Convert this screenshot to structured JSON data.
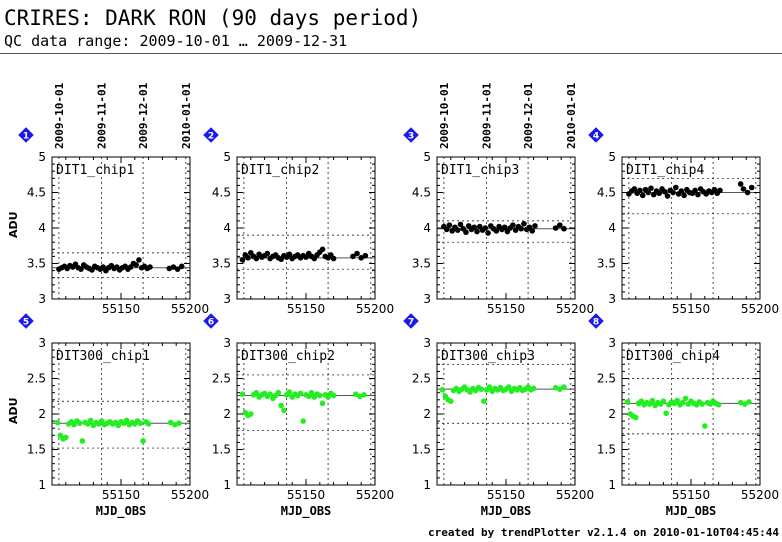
{
  "header": {
    "title": "CRIRES: DARK RON (90 days period)",
    "subtitle": "QC data range: 2009-10-01 … 2009-12-31"
  },
  "footer": "created by trendPlotter v2.1.4 on 2010-01-10T04:45:44",
  "axis_labels": {
    "y": "ADU",
    "x": "MJD_OBS"
  },
  "date_ticks": [
    "2009-10-01",
    "2009-11-01",
    "2009-12-01",
    "2010-01-01"
  ],
  "chart_data": [
    {
      "index": "1",
      "type": "scatter",
      "title": "DIT1_chip1",
      "color": "#000000",
      "xlim": [
        55100,
        55200
      ],
      "ylim": [
        3,
        5
      ],
      "yticks": [
        "3",
        "3.5",
        "4",
        "4.5",
        "5"
      ],
      "xticks": [
        "55150",
        "55200"
      ],
      "median": 3.44,
      "limits": [
        3.3,
        3.65
      ],
      "points": [
        [
          55105,
          3.42
        ],
        [
          55107,
          3.44
        ],
        [
          55109,
          3.46
        ],
        [
          55111,
          3.43
        ],
        [
          55113,
          3.47
        ],
        [
          55115,
          3.45
        ],
        [
          55117,
          3.49
        ],
        [
          55119,
          3.44
        ],
        [
          55121,
          3.42
        ],
        [
          55123,
          3.48
        ],
        [
          55125,
          3.45
        ],
        [
          55127,
          3.43
        ],
        [
          55129,
          3.41
        ],
        [
          55131,
          3.46
        ],
        [
          55133,
          3.44
        ],
        [
          55135,
          3.42
        ],
        [
          55137,
          3.45
        ],
        [
          55139,
          3.4
        ],
        [
          55141,
          3.44
        ],
        [
          55143,
          3.47
        ],
        [
          55145,
          3.43
        ],
        [
          55147,
          3.45
        ],
        [
          55149,
          3.41
        ],
        [
          55151,
          3.44
        ],
        [
          55153,
          3.46
        ],
        [
          55155,
          3.42
        ],
        [
          55157,
          3.45
        ],
        [
          55159,
          3.5
        ],
        [
          55161,
          3.48
        ],
        [
          55163,
          3.55
        ],
        [
          55165,
          3.44
        ],
        [
          55167,
          3.46
        ],
        [
          55169,
          3.43
        ],
        [
          55171,
          3.45
        ],
        [
          55185,
          3.43
        ],
        [
          55188,
          3.45
        ],
        [
          55191,
          3.42
        ],
        [
          55194,
          3.46
        ]
      ]
    },
    {
      "index": "2",
      "type": "scatter",
      "title": "DIT1_chip2",
      "color": "#000000",
      "xlim": [
        55100,
        55200
      ],
      "ylim": [
        3,
        5
      ],
      "yticks": [
        "3",
        "3.5",
        "4",
        "4.5",
        "5"
      ],
      "xticks": [
        "55150",
        "55200"
      ],
      "median": 3.58,
      "limits": [
        3.42,
        3.9
      ],
      "points": [
        [
          55104,
          3.55
        ],
        [
          55106,
          3.62
        ],
        [
          55108,
          3.58
        ],
        [
          55110,
          3.65
        ],
        [
          55112,
          3.6
        ],
        [
          55114,
          3.57
        ],
        [
          55116,
          3.63
        ],
        [
          55118,
          3.59
        ],
        [
          55120,
          3.61
        ],
        [
          55122,
          3.64
        ],
        [
          55124,
          3.57
        ],
        [
          55126,
          3.6
        ],
        [
          55128,
          3.62
        ],
        [
          55130,
          3.58
        ],
        [
          55132,
          3.56
        ],
        [
          55134,
          3.61
        ],
        [
          55136,
          3.59
        ],
        [
          55138,
          3.63
        ],
        [
          55140,
          3.57
        ],
        [
          55142,
          3.6
        ],
        [
          55144,
          3.62
        ],
        [
          55146,
          3.58
        ],
        [
          55148,
          3.61
        ],
        [
          55150,
          3.59
        ],
        [
          55152,
          3.64
        ],
        [
          55154,
          3.6
        ],
        [
          55156,
          3.57
        ],
        [
          55158,
          3.62
        ],
        [
          55160,
          3.66
        ],
        [
          55162,
          3.7
        ],
        [
          55164,
          3.6
        ],
        [
          55166,
          3.58
        ],
        [
          55168,
          3.62
        ],
        [
          55170,
          3.57
        ],
        [
          55184,
          3.6
        ],
        [
          55187,
          3.64
        ],
        [
          55190,
          3.58
        ],
        [
          55193,
          3.61
        ]
      ]
    },
    {
      "index": "3",
      "type": "scatter",
      "title": "DIT1_chip3",
      "color": "#000000",
      "xlim": [
        55100,
        55200
      ],
      "ylim": [
        3,
        5
      ],
      "yticks": [
        "3",
        "3.5",
        "4",
        "4.5",
        "5"
      ],
      "xticks": [
        "55150",
        "55200"
      ],
      "median": 3.99,
      "limits": [
        3.8,
        4.1
      ],
      "points": [
        [
          55105,
          4.02
        ],
        [
          55107,
          3.98
        ],
        [
          55109,
          4.04
        ],
        [
          55111,
          3.96
        ],
        [
          55113,
          4.01
        ],
        [
          55115,
          3.97
        ],
        [
          55117,
          4.05
        ],
        [
          55119,
          3.99
        ],
        [
          55121,
          3.94
        ],
        [
          55123,
          4.03
        ],
        [
          55125,
          3.98
        ],
        [
          55127,
          4.01
        ],
        [
          55129,
          3.95
        ],
        [
          55131,
          4.02
        ],
        [
          55133,
          3.97
        ],
        [
          55135,
          4.0
        ],
        [
          55137,
          3.93
        ],
        [
          55139,
          4.03
        ],
        [
          55141,
          3.99
        ],
        [
          55143,
          3.96
        ],
        [
          55145,
          4.02
        ],
        [
          55147,
          3.98
        ],
        [
          55149,
          4.01
        ],
        [
          55151,
          3.95
        ],
        [
          55153,
          4.0
        ],
        [
          55155,
          4.04
        ],
        [
          55157,
          3.97
        ],
        [
          55159,
          4.02
        ],
        [
          55161,
          3.99
        ],
        [
          55163,
          4.06
        ],
        [
          55165,
          3.98
        ],
        [
          55167,
          4.01
        ],
        [
          55169,
          3.96
        ],
        [
          55171,
          4.03
        ],
        [
          55186,
          4.0
        ],
        [
          55189,
          4.04
        ],
        [
          55192,
          3.99
        ]
      ]
    },
    {
      "index": "4",
      "type": "scatter",
      "title": "DIT1_chip4",
      "color": "#000000",
      "xlim": [
        55100,
        55200
      ],
      "ylim": [
        3,
        5
      ],
      "yticks": [
        "3",
        "3.5",
        "4",
        "4.5",
        "5"
      ],
      "xticks": [
        "55150",
        "55200"
      ],
      "median": 4.5,
      "limits": [
        4.2,
        4.7
      ],
      "points": [
        [
          55105,
          4.48
        ],
        [
          55107,
          4.52
        ],
        [
          55109,
          4.55
        ],
        [
          55111,
          4.49
        ],
        [
          55113,
          4.53
        ],
        [
          55115,
          4.46
        ],
        [
          55117,
          4.54
        ],
        [
          55119,
          4.5
        ],
        [
          55121,
          4.56
        ],
        [
          55123,
          4.47
        ],
        [
          55125,
          4.52
        ],
        [
          55127,
          4.49
        ],
        [
          55129,
          4.55
        ],
        [
          55131,
          4.51
        ],
        [
          55133,
          4.45
        ],
        [
          55135,
          4.53
        ],
        [
          55137,
          4.5
        ],
        [
          55139,
          4.57
        ],
        [
          55141,
          4.48
        ],
        [
          55143,
          4.52
        ],
        [
          55145,
          4.46
        ],
        [
          55147,
          4.54
        ],
        [
          55149,
          4.5
        ],
        [
          55151,
          4.49
        ],
        [
          55153,
          4.53
        ],
        [
          55155,
          4.47
        ],
        [
          55157,
          4.55
        ],
        [
          55159,
          4.51
        ],
        [
          55161,
          4.48
        ],
        [
          55163,
          4.52
        ],
        [
          55165,
          4.5
        ],
        [
          55167,
          4.54
        ],
        [
          55169,
          4.49
        ],
        [
          55171,
          4.53
        ],
        [
          55186,
          4.62
        ],
        [
          55188,
          4.55
        ],
        [
          55191,
          4.5
        ],
        [
          55194,
          4.57
        ]
      ]
    },
    {
      "index": "5",
      "type": "scatter",
      "title": "DIT300_chip1",
      "color": "#22ee22",
      "xlim": [
        55100,
        55200
      ],
      "ylim": [
        1,
        3
      ],
      "yticks": [
        "1",
        "1.5",
        "2",
        "2.5",
        "3"
      ],
      "xticks": [
        "55150",
        "55200"
      ],
      "median": 1.87,
      "limits": [
        1.52,
        2.18
      ],
      "points": [
        [
          55104,
          1.88
        ],
        [
          55106,
          1.7
        ],
        [
          55108,
          1.65
        ],
        [
          55110,
          1.67
        ],
        [
          55112,
          1.86
        ],
        [
          55114,
          1.89
        ],
        [
          55116,
          1.85
        ],
        [
          55118,
          1.9
        ],
        [
          55120,
          1.87
        ],
        [
          55122,
          1.62
        ],
        [
          55124,
          1.88
        ],
        [
          55126,
          1.86
        ],
        [
          55128,
          1.91
        ],
        [
          55130,
          1.84
        ],
        [
          55132,
          1.88
        ],
        [
          55134,
          1.86
        ],
        [
          55136,
          1.9
        ],
        [
          55138,
          1.85
        ],
        [
          55140,
          1.87
        ],
        [
          55142,
          1.89
        ],
        [
          55144,
          1.86
        ],
        [
          55146,
          1.88
        ],
        [
          55148,
          1.84
        ],
        [
          55150,
          1.89
        ],
        [
          55152,
          1.87
        ],
        [
          55154,
          1.91
        ],
        [
          55156,
          1.85
        ],
        [
          55158,
          1.88
        ],
        [
          55160,
          1.86
        ],
        [
          55162,
          1.9
        ],
        [
          55164,
          1.87
        ],
        [
          55166,
          1.62
        ],
        [
          55168,
          1.89
        ],
        [
          55170,
          1.86
        ],
        [
          55186,
          1.88
        ],
        [
          55189,
          1.85
        ],
        [
          55192,
          1.87
        ]
      ]
    },
    {
      "index": "6",
      "type": "scatter",
      "title": "DIT300_chip2",
      "color": "#22ee22",
      "xlim": [
        55100,
        55200
      ],
      "ylim": [
        1,
        3
      ],
      "yticks": [
        "1",
        "1.5",
        "2",
        "2.5",
        "3"
      ],
      "xticks": [
        "55150",
        "55200"
      ],
      "median": 2.26,
      "limits": [
        1.77,
        2.55
      ],
      "points": [
        [
          55104,
          2.28
        ],
        [
          55106,
          2.02
        ],
        [
          55108,
          1.98
        ],
        [
          55110,
          2.0
        ],
        [
          55112,
          2.27
        ],
        [
          55114,
          2.3
        ],
        [
          55116,
          2.24
        ],
        [
          55118,
          2.27
        ],
        [
          55120,
          2.29
        ],
        [
          55122,
          2.25
        ],
        [
          55124,
          2.28
        ],
        [
          55126,
          2.22
        ],
        [
          55128,
          2.26
        ],
        [
          55130,
          2.3
        ],
        [
          55132,
          2.12
        ],
        [
          55134,
          2.05
        ],
        [
          55136,
          2.27
        ],
        [
          55138,
          2.31
        ],
        [
          55140,
          2.24
        ],
        [
          55142,
          2.28
        ],
        [
          55144,
          2.26
        ],
        [
          55146,
          2.29
        ],
        [
          55148,
          1.9
        ],
        [
          55150,
          2.27
        ],
        [
          55152,
          2.25
        ],
        [
          55154,
          2.3
        ],
        [
          55156,
          2.24
        ],
        [
          55158,
          2.28
        ],
        [
          55160,
          2.26
        ],
        [
          55162,
          2.15
        ],
        [
          55164,
          2.27
        ],
        [
          55166,
          2.24
        ],
        [
          55168,
          2.29
        ],
        [
          55170,
          2.26
        ],
        [
          55186,
          2.28
        ],
        [
          55189,
          2.25
        ],
        [
          55192,
          2.27
        ]
      ]
    },
    {
      "index": "7",
      "type": "scatter",
      "title": "DIT300_chip3",
      "color": "#22ee22",
      "xlim": [
        55100,
        55200
      ],
      "ylim": [
        1,
        3
      ],
      "yticks": [
        "1",
        "1.5",
        "2",
        "2.5",
        "3"
      ],
      "xticks": [
        "55150",
        "55200"
      ],
      "median": 2.35,
      "limits": [
        1.87,
        2.7
      ],
      "points": [
        [
          55104,
          2.34
        ],
        [
          55106,
          2.25
        ],
        [
          55108,
          2.2
        ],
        [
          55110,
          2.18
        ],
        [
          55112,
          2.33
        ],
        [
          55114,
          2.36
        ],
        [
          55116,
          2.32
        ],
        [
          55118,
          2.35
        ],
        [
          55120,
          2.38
        ],
        [
          55122,
          2.34
        ],
        [
          55124,
          2.31
        ],
        [
          55126,
          2.36
        ],
        [
          55128,
          2.33
        ],
        [
          55130,
          2.37
        ],
        [
          55132,
          2.35
        ],
        [
          55134,
          2.18
        ],
        [
          55136,
          2.34
        ],
        [
          55138,
          2.38
        ],
        [
          55140,
          2.32
        ],
        [
          55142,
          2.36
        ],
        [
          55144,
          2.34
        ],
        [
          55146,
          2.37
        ],
        [
          55148,
          2.33
        ],
        [
          55150,
          2.35
        ],
        [
          55152,
          2.38
        ],
        [
          55154,
          2.32
        ],
        [
          55156,
          2.36
        ],
        [
          55158,
          2.34
        ],
        [
          55160,
          2.37
        ],
        [
          55162,
          2.33
        ],
        [
          55164,
          2.35
        ],
        [
          55166,
          2.38
        ],
        [
          55168,
          2.34
        ],
        [
          55170,
          2.36
        ],
        [
          55186,
          2.37
        ],
        [
          55189,
          2.35
        ],
        [
          55192,
          2.38
        ]
      ]
    },
    {
      "index": "8",
      "type": "scatter",
      "title": "DIT300_chip4",
      "color": "#22ee22",
      "xlim": [
        55100,
        55200
      ],
      "ylim": [
        1,
        3
      ],
      "yticks": [
        "1",
        "1.5",
        "2",
        "2.5",
        "3"
      ],
      "xticks": [
        "55150",
        "55200"
      ],
      "median": 2.15,
      "limits": [
        1.72,
        2.5
      ],
      "points": [
        [
          55104,
          2.17
        ],
        [
          55106,
          2.0
        ],
        [
          55108,
          1.97
        ],
        [
          55110,
          1.95
        ],
        [
          55112,
          2.15
        ],
        [
          55114,
          2.18
        ],
        [
          55116,
          2.13
        ],
        [
          55118,
          2.16
        ],
        [
          55120,
          2.14
        ],
        [
          55122,
          2.19
        ],
        [
          55124,
          2.12
        ],
        [
          55126,
          2.16
        ],
        [
          55128,
          2.14
        ],
        [
          55130,
          2.18
        ],
        [
          55132,
          2.01
        ],
        [
          55134,
          2.13
        ],
        [
          55136,
          2.17
        ],
        [
          55138,
          2.15
        ],
        [
          55140,
          2.19
        ],
        [
          55142,
          2.13
        ],
        [
          55144,
          2.16
        ],
        [
          55146,
          2.22
        ],
        [
          55148,
          2.14
        ],
        [
          55150,
          2.18
        ],
        [
          55152,
          2.15
        ],
        [
          55154,
          2.13
        ],
        [
          55156,
          2.17
        ],
        [
          55158,
          2.14
        ],
        [
          55160,
          1.83
        ],
        [
          55162,
          2.16
        ],
        [
          55164,
          2.14
        ],
        [
          55166,
          2.18
        ],
        [
          55168,
          2.15
        ],
        [
          55170,
          2.13
        ],
        [
          55186,
          2.16
        ],
        [
          55189,
          2.14
        ],
        [
          55192,
          2.17
        ]
      ]
    }
  ]
}
